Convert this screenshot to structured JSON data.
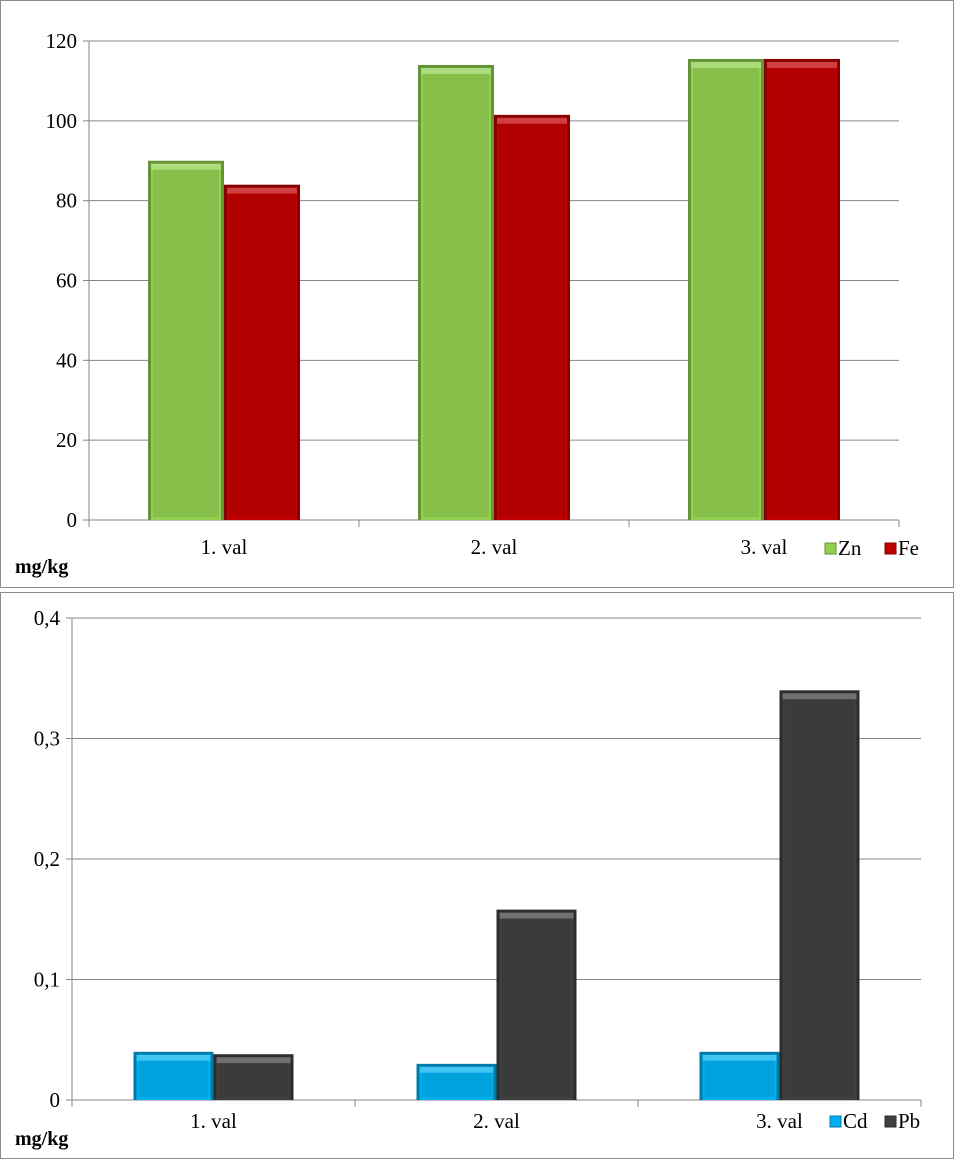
{
  "chart_data": [
    {
      "type": "bar",
      "categories": [
        "1. val",
        "2. val",
        "3. val"
      ],
      "series": [
        {
          "name": "Zn",
          "values": [
            90,
            114,
            115.5
          ],
          "color": "#92d050"
        },
        {
          "name": "Fe",
          "values": [
            84,
            101.5,
            115.5
          ],
          "color": "#c00000"
        }
      ],
      "yticks": [
        "0",
        "20",
        "40",
        "60",
        "80",
        "100",
        "120"
      ],
      "ylim": [
        0,
        120
      ],
      "ylabel": "mg/kg",
      "grid": true,
      "legend": "bottom-right"
    },
    {
      "type": "bar",
      "categories": [
        "1. val",
        "2. val",
        "3. val"
      ],
      "series": [
        {
          "name": "Cd",
          "values": [
            0.04,
            0.03,
            0.04
          ],
          "color": "#00b0f0"
        },
        {
          "name": "Pb",
          "values": [
            0.038,
            0.158,
            0.34
          ],
          "color": "#404040"
        }
      ],
      "yticks": [
        "0",
        "0,1",
        "0,2",
        "0,3",
        "0,4"
      ],
      "ylim": [
        0,
        0.4
      ],
      "ylabel": "mg/kg",
      "grid": true,
      "legend": "bottom-right"
    }
  ]
}
